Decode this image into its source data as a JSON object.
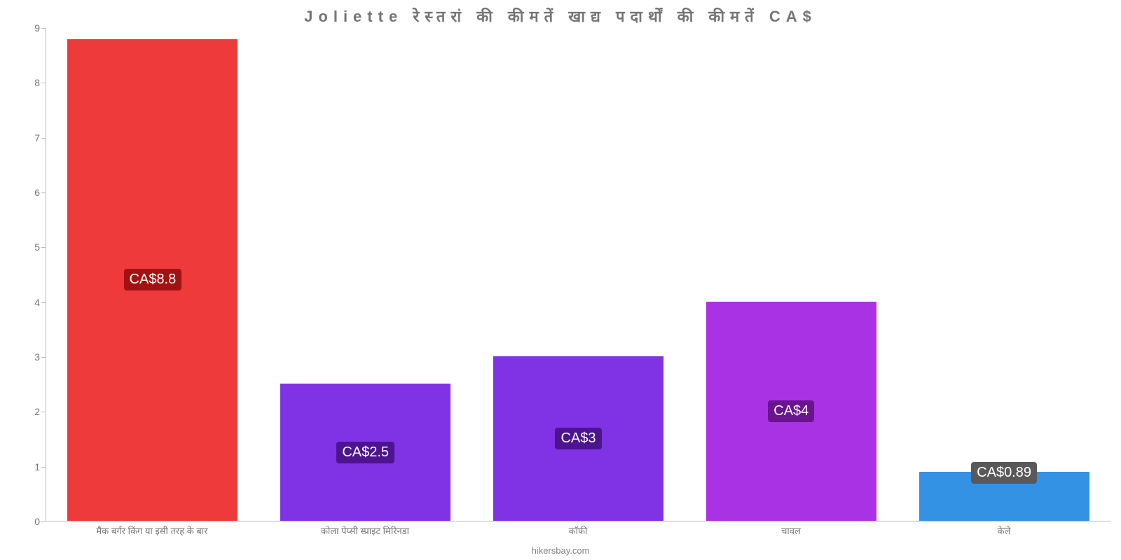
{
  "chart": {
    "type": "bar",
    "title": "Joliette रेस्तरां  की  कीमतें  खाद्य  पदार्थों  की  कीमतें  CA$",
    "title_fontsize": 22,
    "title_color": "#757575",
    "background_color": "#ffffff",
    "axis_color": "#bbbbbb",
    "tick_label_color": "#757575",
    "tick_fontsize": 14,
    "y_axis": {
      "min": 0,
      "max": 9,
      "ticks": [
        0,
        1,
        2,
        3,
        4,
        5,
        6,
        7,
        8,
        9
      ]
    },
    "bar_width_ratio": 0.8,
    "value_label_fontsize": 20,
    "value_label_text_color": "#ffffff",
    "bars": [
      {
        "category": "मैक बर्गर किंग या इसी तरह के बार",
        "value": 8.8,
        "display": "CA$8.8",
        "fill_color": "#ee3a3a",
        "label_bg_color": "#a21212"
      },
      {
        "category": "कोला पेप्सी स्प्राइट मिरिनडा",
        "value": 2.5,
        "display": "CA$2.5",
        "fill_color": "#8033e4",
        "label_bg_color": "#4c148f"
      },
      {
        "category": "कॉफी",
        "value": 3,
        "display": "CA$3",
        "fill_color": "#8033e4",
        "label_bg_color": "#4c148f"
      },
      {
        "category": "चावल",
        "value": 4,
        "display": "CA$4",
        "fill_color": "#a933e4",
        "label_bg_color": "#6a148f"
      },
      {
        "category": "केले",
        "value": 0.89,
        "display": "CA$0.89",
        "fill_color": "#3392e4",
        "label_bg_color": "#595959"
      }
    ],
    "credit": "hikersbay.com",
    "credit_color": "#808080"
  }
}
